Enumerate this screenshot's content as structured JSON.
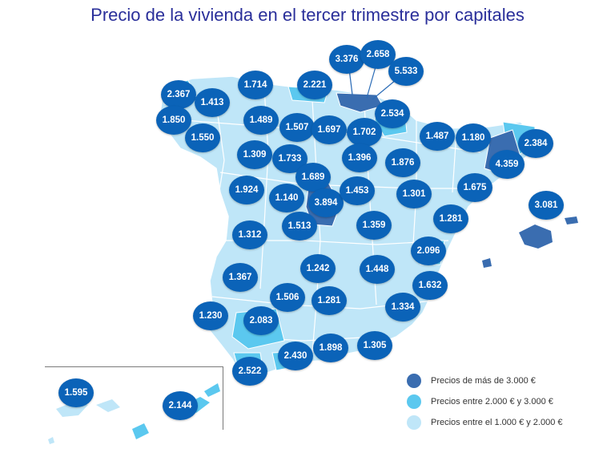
{
  "title": "Precio de la vivienda en el tercer trimestre por capitales",
  "colors": {
    "above_3000": "#3a6db0",
    "between_2000_3000": "#5bc8ef",
    "between_1000_2000": "#bfe6f8",
    "bubble": "#0b63b8",
    "title": "#2a2f9a"
  },
  "legend": [
    {
      "label": "Precios de más de 3.000 €",
      "color": "#3a6db0"
    },
    {
      "label": "Precios entre 2.000 € y 3.000 €",
      "color": "#5bc8ef"
    },
    {
      "label": "Precios entre el 1.000 € y 2.000 €",
      "color": "#bfe6f8"
    }
  ],
  "prices": {
    "coruna": "2.367",
    "lugo": "1.413",
    "pontevedra": "1.850",
    "ourense": "1.550",
    "oviedo": "1.714",
    "santander": "2.221",
    "bilbao": "3.376",
    "vitoria": "2.658",
    "san_sebastian": "5.533",
    "pamplona": "2.534",
    "leon": "1.489",
    "palencia": "1.507",
    "burgos": "1.697",
    "logrono": "1.702",
    "huesca": "1.487",
    "lleida": "1.180",
    "girona": "2.384",
    "barcelona": "4.359",
    "zamora": "1.309",
    "valladolid": "1.733",
    "soria": "1.396",
    "zaragoza": "1.876",
    "segovia": "1.689",
    "salamanca": "1.924",
    "avila": "1.140",
    "madrid": "3.894",
    "guadalajara": "1.453",
    "teruel": "1.301",
    "tarragona": "1.675",
    "palma": "3.081",
    "castellon": "1.281",
    "caceres": "1.312",
    "toledo": "1.513",
    "cuenca": "1.359",
    "valencia": "2.096",
    "ciudad_real": "1.242",
    "albacete": "1.448",
    "badajoz": "1.367",
    "alicante": "1.632",
    "cordoba": "1.506",
    "jaen": "1.281",
    "murcia": "1.334",
    "huelva": "1.230",
    "sevilla": "2.083",
    "granada": "1.898",
    "almeria": "1.305",
    "malaga": "2.430",
    "cadiz": "2.522",
    "sc_tenerife": "1.595",
    "las_palmas": "2.144"
  }
}
